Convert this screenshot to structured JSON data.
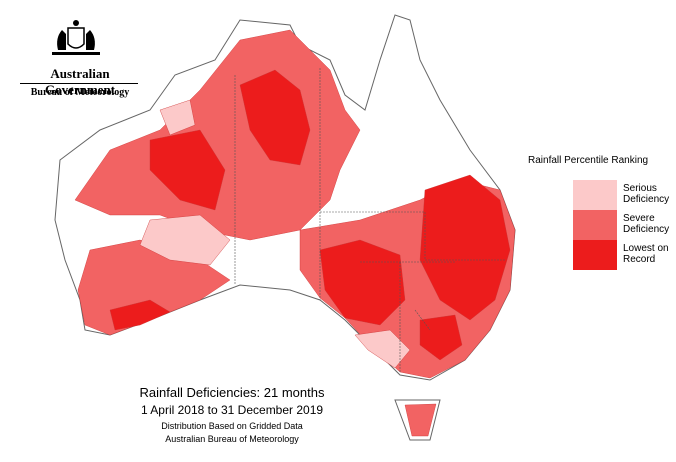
{
  "header": {
    "government": "Australian Government",
    "agency": "Bureau of Meteorology"
  },
  "legend": {
    "title": "Rainfall Percentile Ranking",
    "items": [
      {
        "label": "Serious Deficiency",
        "color": "#fcc9c9"
      },
      {
        "label": "Severe Deficiency",
        "color": "#f26363"
      },
      {
        "label": "Lowest on Record",
        "color": "#ec1c1c"
      }
    ]
  },
  "caption": {
    "title": "Rainfall Deficiencies: 21 months",
    "period": "1 April 2018 to 31 December 2019",
    "note": "Distribution Based on Gridded Data",
    "source": "Australian Bureau of Meteorology"
  }
}
